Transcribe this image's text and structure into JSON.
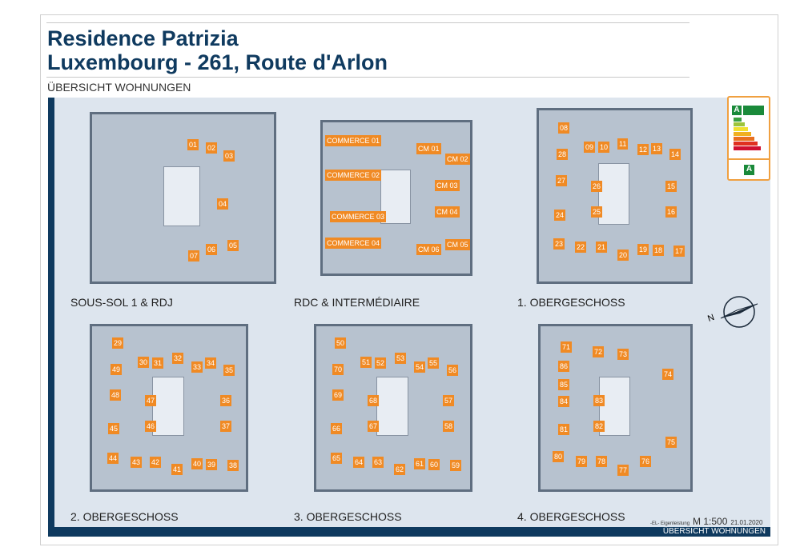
{
  "header": {
    "title_line1": "Residence Patrizia",
    "title_line2": "Luxembourg - 261, Route d'Arlon",
    "subtitle": "ÜBERSICHT WOHNUNGEN"
  },
  "colors": {
    "navy": "#0f3a5f",
    "unit_label": "#f08a24",
    "background": "#dde5ee"
  },
  "plans": [
    {
      "caption": "SOUS-SOL 1 & RDJ",
      "units": [
        "01",
        "02",
        "03",
        "04",
        "05",
        "06",
        "07"
      ]
    },
    {
      "caption": "RDC & INTERMÉDIAIRE",
      "units": [
        "COMMERCE 01",
        "COMMERCE 02",
        "COMMERCE 03",
        "COMMERCE 04",
        "CM 01",
        "CM 02",
        "CM 03",
        "CM 04",
        "CM 05",
        "CM 06"
      ]
    },
    {
      "caption": "1. OBERGESCHOSS",
      "units": [
        "08",
        "09",
        "10",
        "11",
        "12",
        "13",
        "14",
        "28",
        "27",
        "26",
        "15",
        "25",
        "24",
        "16",
        "23",
        "22",
        "21",
        "20",
        "19",
        "18",
        "17"
      ]
    },
    {
      "caption": "2. OBERGESCHOSS",
      "units": [
        "29",
        "30",
        "31",
        "32",
        "33",
        "34",
        "35",
        "49",
        "48",
        "47",
        "36",
        "46",
        "45",
        "37",
        "44",
        "43",
        "42",
        "41",
        "40",
        "39",
        "38"
      ]
    },
    {
      "caption": "3. OBERGESCHOSS",
      "units": [
        "50",
        "51",
        "52",
        "53",
        "54",
        "55",
        "56",
        "70",
        "69",
        "68",
        "57",
        "67",
        "66",
        "58",
        "65",
        "64",
        "63",
        "62",
        "61",
        "60",
        "59"
      ]
    },
    {
      "caption": "4. OBERGESCHOSS",
      "units": [
        "71",
        "72",
        "73",
        "86",
        "74",
        "85",
        "84",
        "83",
        "81",
        "82",
        "75",
        "80",
        "79",
        "78",
        "77",
        "76"
      ]
    }
  ],
  "energy_label": {
    "energy_class": "A",
    "insulation_class": "A",
    "icon": "energy-efficiency-label"
  },
  "compass": {
    "north_label": "N",
    "icon": "compass-icon"
  },
  "footer": {
    "author": "-EL- Eigenleistung",
    "scale": "M 1:500",
    "date": "21.01.2020",
    "bar_text": "ÜBERSICHT WOHNUNGEN"
  }
}
